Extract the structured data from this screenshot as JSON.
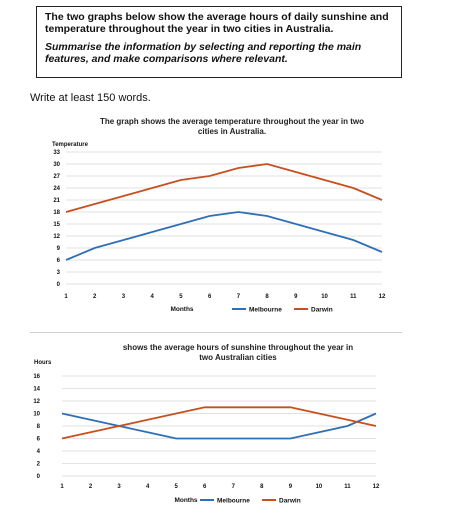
{
  "task": {
    "line1": "The two graphs below show the average hours of daily sunshine and temperature throughout the year in two cities in Australia.",
    "line2": "Summarise the information by selecting and reporting the main features, and make comparisons where relevant."
  },
  "instruction": "Write at least 150 words.",
  "colors": {
    "melbourne": "#2f6fb7",
    "darwin": "#c8501e",
    "grid": "#d9d9d9"
  },
  "chart_data": [
    {
      "type": "line",
      "title_line1": "The graph shows the average temperature throughout the year in two",
      "title_line2": "cities in Australia.",
      "ylabel": "Temperature",
      "xlabel": "Months",
      "x": [
        1,
        2,
        3,
        4,
        5,
        6,
        7,
        8,
        9,
        10,
        11,
        12
      ],
      "yticks": [
        0,
        3,
        6,
        9,
        12,
        15,
        18,
        21,
        24,
        27,
        30,
        33
      ],
      "ylim": [
        0,
        33
      ],
      "legend_position": "bottom-center",
      "series": [
        {
          "name": "Melbourne",
          "color": "#2f6fb7",
          "values": [
            6,
            9,
            11,
            13,
            15,
            17,
            18,
            17,
            15,
            13,
            11,
            8
          ]
        },
        {
          "name": "Darwin",
          "color": "#c8501e",
          "values": [
            18,
            20,
            22,
            24,
            26,
            27,
            29,
            30,
            28,
            26,
            24,
            21
          ]
        }
      ]
    },
    {
      "type": "line",
      "title_line1": "shows the average hours of sunshine throughout the year in",
      "title_line2": "two Australian cities",
      "ylabel": "Hours",
      "xlabel": "Months",
      "x": [
        1,
        2,
        3,
        4,
        5,
        6,
        7,
        8,
        9,
        10,
        11,
        12
      ],
      "yticks": [
        0,
        2,
        4,
        6,
        8,
        10,
        12,
        14,
        16
      ],
      "ylim": [
        0,
        16
      ],
      "legend_position": "bottom-center",
      "series": [
        {
          "name": "Melbourne",
          "color": "#2f6fb7",
          "values": [
            10,
            9,
            8,
            7,
            6,
            6,
            6,
            6,
            6,
            7,
            8,
            10
          ]
        },
        {
          "name": "Darwin",
          "color": "#c8501e",
          "values": [
            6,
            7,
            8,
            9,
            10,
            11,
            11,
            11,
            11,
            10,
            9,
            8
          ]
        }
      ]
    }
  ]
}
